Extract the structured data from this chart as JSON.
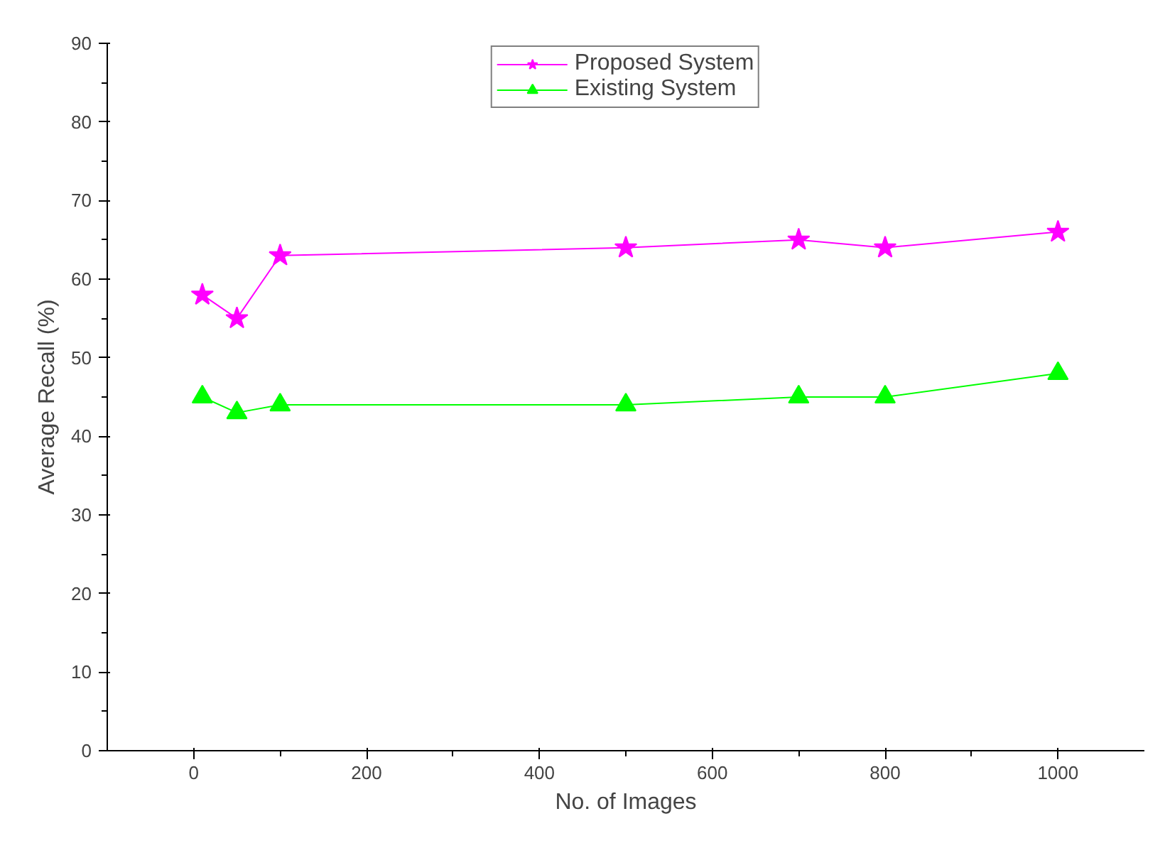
{
  "chart_data": {
    "type": "line",
    "xlabel": "No. of Images",
    "ylabel": "Average Recall (%)",
    "x": [
      10,
      50,
      100,
      500,
      700,
      800,
      1000
    ],
    "series": [
      {
        "name": "Proposed System",
        "color": "#ff00ff",
        "marker": "star",
        "values": [
          58,
          55,
          63,
          64,
          65,
          64,
          66
        ]
      },
      {
        "name": "Existing System",
        "color": "#00ff00",
        "marker": "triangle",
        "values": [
          45,
          43,
          44,
          44,
          45,
          45,
          48
        ]
      }
    ],
    "xlim": [
      -100,
      1100
    ],
    "xticks": [
      0,
      200,
      400,
      600,
      800,
      1000
    ],
    "ylim": [
      0,
      90
    ],
    "yticks": [
      0,
      10,
      20,
      30,
      40,
      50,
      60,
      70,
      80,
      90
    ],
    "grid": false,
    "legend": "top",
    "line_style": "solid"
  }
}
